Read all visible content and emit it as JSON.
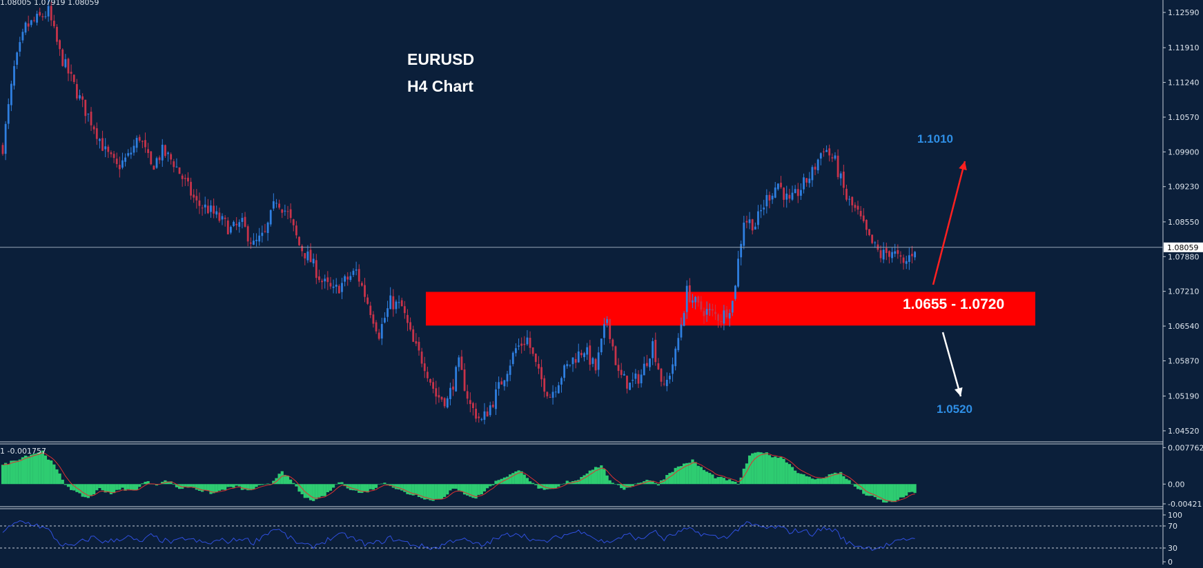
{
  "header": {
    "ohlc_text": "1.08005 1.07919 1.08059"
  },
  "chart_title": {
    "symbol": "EURUSD",
    "timeframe": "H4 Chart"
  },
  "annotations": {
    "upper_target": "1.1010",
    "lower_target": "1.0520",
    "zone_label": "1.0655 - 1.0720"
  },
  "colors": {
    "background": "#0b1f3a",
    "bull_candle": "#2f7fe0",
    "bear_candle": "#c8334a",
    "zone": "#ff0000",
    "histogram": "#2ecc71",
    "signal_line": "#e03030",
    "rsi_line": "#3050e0",
    "target_text": "#2f8fe6",
    "up_arrow": "#ff2020",
    "down_arrow": "#ffffff"
  },
  "chart_data": [
    {
      "type": "candlestick",
      "symbol": "EURUSD",
      "timeframe": "H4",
      "y_axis_ticks": [
        "1.12590",
        "1.11910",
        "1.11240",
        "1.10570",
        "1.09900",
        "1.09230",
        "1.08550",
        "1.07880",
        "1.07210",
        "1.06540",
        "1.05870",
        "1.05190",
        "1.04520"
      ],
      "ylim": [
        1.0432,
        1.1283
      ],
      "current_price": 1.08059,
      "current_price_label": "1.08059",
      "zone": {
        "low": 1.0655,
        "high": 1.072
      },
      "targets": {
        "up": 1.101,
        "down": 1.052
      },
      "close_path": [
        [
          0,
          1.1
        ],
        [
          4,
          1.115
        ],
        [
          8,
          1.123
        ],
        [
          12,
          1.1245
        ],
        [
          16,
          1.126
        ],
        [
          20,
          1.118
        ],
        [
          24,
          1.113
        ],
        [
          28,
          1.108
        ],
        [
          32,
          1.104
        ],
        [
          36,
          1.099
        ],
        [
          40,
          1.096
        ],
        [
          44,
          1.098
        ],
        [
          48,
          1.102
        ],
        [
          52,
          1.096
        ],
        [
          56,
          1.099
        ],
        [
          60,
          1.097
        ],
        [
          64,
          1.093
        ],
        [
          68,
          1.089
        ],
        [
          72,
          1.088
        ],
        [
          76,
          1.086
        ],
        [
          80,
          1.084
        ],
        [
          84,
          1.085
        ],
        [
          88,
          1.081
        ],
        [
          92,
          1.083
        ],
        [
          96,
          1.09
        ],
        [
          100,
          1.087
        ],
        [
          104,
          1.081
        ],
        [
          108,
          1.078
        ],
        [
          112,
          1.074
        ],
        [
          116,
          1.072
        ],
        [
          120,
          1.074
        ],
        [
          124,
          1.076
        ],
        [
          128,
          1.07
        ],
        [
          132,
          1.064
        ],
        [
          136,
          1.07
        ],
        [
          140,
          1.069
        ],
        [
          144,
          1.062
        ],
        [
          148,
          1.058
        ],
        [
          152,
          1.052
        ],
        [
          156,
          1.051
        ],
        [
          160,
          1.058
        ],
        [
          164,
          1.05
        ],
        [
          168,
          1.047
        ],
        [
          172,
          1.051
        ],
        [
          176,
          1.056
        ],
        [
          180,
          1.061
        ],
        [
          184,
          1.063
        ],
        [
          188,
          1.056
        ],
        [
          192,
          1.052
        ],
        [
          196,
          1.056
        ],
        [
          200,
          1.059
        ],
        [
          204,
          1.061
        ],
        [
          208,
          1.057
        ],
        [
          212,
          1.067
        ],
        [
          216,
          1.056
        ],
        [
          220,
          1.054
        ],
        [
          224,
          1.056
        ],
        [
          228,
          1.062
        ],
        [
          232,
          1.053
        ],
        [
          236,
          1.06
        ],
        [
          240,
          1.072
        ],
        [
          244,
          1.069
        ],
        [
          248,
          1.068
        ],
        [
          252,
          1.067
        ],
        [
          256,
          1.07
        ],
        [
          260,
          1.086
        ],
        [
          264,
          1.085
        ],
        [
          268,
          1.09
        ],
        [
          272,
          1.093
        ],
        [
          276,
          1.089
        ],
        [
          280,
          1.092
        ],
        [
          284,
          1.095
        ],
        [
          288,
          1.1
        ],
        [
          292,
          1.097
        ],
        [
          296,
          1.09
        ],
        [
          300,
          1.087
        ],
        [
          304,
          1.082
        ],
        [
          308,
          1.079
        ],
        [
          312,
          1.08
        ],
        [
          316,
          1.077
        ],
        [
          320,
          1.0806
        ]
      ]
    },
    {
      "type": "histogram",
      "name": "oscillator",
      "header_text": "1 -0.001757",
      "y_axis_ticks": [
        "0.007762",
        "0.00",
        "-0.00421"
      ],
      "ylim": [
        -0.0048,
        0.0084
      ],
      "values_path": [
        [
          0,
          0.004
        ],
        [
          8,
          0.006
        ],
        [
          14,
          0.007
        ],
        [
          18,
          0.004
        ],
        [
          22,
          0.0
        ],
        [
          26,
          -0.002
        ],
        [
          30,
          -0.003
        ],
        [
          34,
          -0.001
        ],
        [
          38,
          -0.002
        ],
        [
          42,
          -0.001
        ],
        [
          46,
          -0.0015
        ],
        [
          50,
          0.0005
        ],
        [
          54,
          0.0
        ],
        [
          58,
          0.0008
        ],
        [
          62,
          -0.001
        ],
        [
          66,
          -0.0005
        ],
        [
          70,
          -0.0015
        ],
        [
          74,
          -0.002
        ],
        [
          78,
          -0.001
        ],
        [
          82,
          -0.0005
        ],
        [
          86,
          -0.0015
        ],
        [
          90,
          -0.0005
        ],
        [
          94,
          0.0
        ],
        [
          98,
          0.003
        ],
        [
          102,
          0.0
        ],
        [
          106,
          -0.003
        ],
        [
          110,
          -0.0035
        ],
        [
          114,
          -0.002
        ],
        [
          118,
          0.0005
        ],
        [
          122,
          -0.001
        ],
        [
          126,
          -0.002
        ],
        [
          130,
          -0.001
        ],
        [
          134,
          0.0005
        ],
        [
          138,
          -0.001
        ],
        [
          142,
          -0.002
        ],
        [
          146,
          -0.0025
        ],
        [
          150,
          -0.0035
        ],
        [
          154,
          -0.003
        ],
        [
          158,
          -0.001
        ],
        [
          162,
          -0.002
        ],
        [
          166,
          -0.003
        ],
        [
          170,
          -0.001
        ],
        [
          174,
          0.001
        ],
        [
          178,
          0.002
        ],
        [
          182,
          0.003
        ],
        [
          186,
          0.0
        ],
        [
          190,
          -0.0015
        ],
        [
          194,
          -0.001
        ],
        [
          198,
          0.0005
        ],
        [
          202,
          0.001
        ],
        [
          206,
          0.003
        ],
        [
          210,
          0.004
        ],
        [
          214,
          0.0
        ],
        [
          218,
          -0.001
        ],
        [
          222,
          0.0
        ],
        [
          226,
          0.001
        ],
        [
          230,
          0.0
        ],
        [
          234,
          0.0025
        ],
        [
          238,
          0.004
        ],
        [
          242,
          0.005
        ],
        [
          246,
          0.003
        ],
        [
          250,
          0.0015
        ],
        [
          254,
          0.001
        ],
        [
          258,
          0.0
        ],
        [
          262,
          0.006
        ],
        [
          266,
          0.007
        ],
        [
          270,
          0.006
        ],
        [
          274,
          0.0055
        ],
        [
          278,
          0.003
        ],
        [
          282,
          0.0015
        ],
        [
          286,
          0.001
        ],
        [
          290,
          0.002
        ],
        [
          294,
          0.0025
        ],
        [
          298,
          0.0
        ],
        [
          302,
          -0.002
        ],
        [
          306,
          -0.003
        ],
        [
          310,
          -0.004
        ],
        [
          314,
          -0.0035
        ],
        [
          318,
          -0.002
        ],
        [
          320,
          -0.0017
        ]
      ]
    },
    {
      "type": "line",
      "name": "oscillator-2",
      "y_axis_ticks": [
        "100",
        "70",
        "30",
        "0"
      ],
      "ylim": [
        0,
        100
      ],
      "levels": [
        70,
        30
      ],
      "values_path": [
        [
          0,
          60
        ],
        [
          6,
          78
        ],
        [
          12,
          72
        ],
        [
          16,
          62
        ],
        [
          20,
          38
        ],
        [
          24,
          32
        ],
        [
          28,
          42
        ],
        [
          32,
          50
        ],
        [
          36,
          40
        ],
        [
          40,
          46
        ],
        [
          44,
          50
        ],
        [
          48,
          40
        ],
        [
          52,
          52
        ],
        [
          56,
          44
        ],
        [
          60,
          40
        ],
        [
          64,
          48
        ],
        [
          68,
          42
        ],
        [
          72,
          38
        ],
        [
          76,
          44
        ],
        [
          80,
          42
        ],
        [
          84,
          48
        ],
        [
          88,
          40
        ],
        [
          92,
          55
        ],
        [
          96,
          66
        ],
        [
          100,
          50
        ],
        [
          104,
          38
        ],
        [
          108,
          32
        ],
        [
          112,
          40
        ],
        [
          116,
          50
        ],
        [
          120,
          54
        ],
        [
          124,
          44
        ],
        [
          128,
          36
        ],
        [
          132,
          40
        ],
        [
          136,
          48
        ],
        [
          140,
          42
        ],
        [
          144,
          36
        ],
        [
          148,
          32
        ],
        [
          152,
          30
        ],
        [
          156,
          40
        ],
        [
          160,
          48
        ],
        [
          164,
          40
        ],
        [
          168,
          34
        ],
        [
          172,
          44
        ],
        [
          176,
          52
        ],
        [
          180,
          58
        ],
        [
          184,
          50
        ],
        [
          188,
          40
        ],
        [
          192,
          44
        ],
        [
          196,
          52
        ],
        [
          200,
          58
        ],
        [
          204,
          62
        ],
        [
          208,
          46
        ],
        [
          212,
          40
        ],
        [
          216,
          48
        ],
        [
          220,
          54
        ],
        [
          224,
          44
        ],
        [
          228,
          62
        ],
        [
          232,
          46
        ],
        [
          236,
          56
        ],
        [
          240,
          64
        ],
        [
          244,
          58
        ],
        [
          248,
          52
        ],
        [
          252,
          48
        ],
        [
          256,
          56
        ],
        [
          260,
          74
        ],
        [
          264,
          70
        ],
        [
          268,
          66
        ],
        [
          272,
          68
        ],
        [
          276,
          60
        ],
        [
          280,
          62
        ],
        [
          284,
          56
        ],
        [
          288,
          66
        ],
        [
          292,
          62
        ],
        [
          296,
          40
        ],
        [
          300,
          34
        ],
        [
          304,
          30
        ],
        [
          308,
          32
        ],
        [
          312,
          38
        ],
        [
          316,
          44
        ],
        [
          320,
          50
        ]
      ]
    }
  ]
}
